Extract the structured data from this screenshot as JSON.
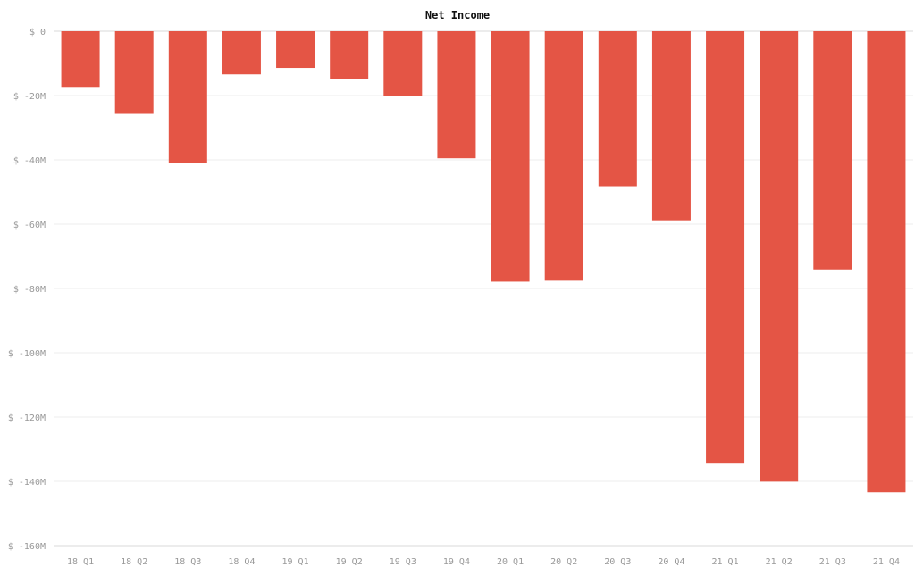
{
  "chart_data": {
    "type": "bar",
    "title": "Net Income",
    "xlabel": "",
    "ylabel": "",
    "categories": [
      "18 Q1",
      "18 Q2",
      "18 Q3",
      "18 Q4",
      "19 Q1",
      "19 Q2",
      "19 Q3",
      "19 Q4",
      "20 Q1",
      "20 Q2",
      "20 Q3",
      "20 Q4",
      "21 Q1",
      "21 Q2",
      "21 Q3",
      "21 Q4"
    ],
    "series": [
      {
        "values": [
          -17.3,
          -25.7,
          -41.0,
          -13.4,
          -11.4,
          -14.8,
          -20.2,
          -39.5,
          -77.9,
          -77.6,
          -48.2,
          -58.8,
          -134.5,
          -140.1,
          -74.1,
          -143.4
        ]
      }
    ],
    "units": "$ M",
    "ylim": [
      -160,
      0
    ],
    "y_ticks": [
      0,
      -20,
      -40,
      -60,
      -80,
      -100,
      -120,
      -140,
      -160
    ],
    "y_tick_labels": [
      "$ 0",
      "$ -20M",
      "$ -40M",
      "$ -60M",
      "$ -80M",
      "$ -100M",
      "$ -120M",
      "$ -140M",
      "$ -160M"
    ],
    "grid": "horizontal",
    "legend": "none",
    "colors": {
      "bar": "#e45545",
      "grid": "#ececec",
      "axis": "#d9d9d9",
      "tick_text": "#999999",
      "title": "#111111"
    }
  }
}
